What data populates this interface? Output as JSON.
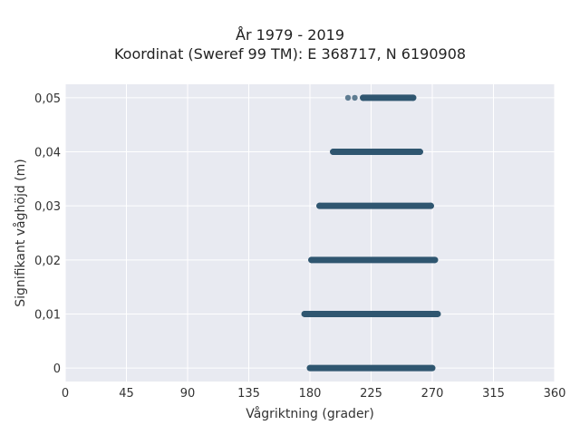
{
  "chart_data": {
    "type": "scatter",
    "title_line1": "År 1979 - 2019",
    "title_line2": "Koordinat (Sweref 99 TM): E 368717, N 6190908",
    "xlabel": "Vågriktning (grader)",
    "ylabel": "Signifikant våghöjd (m)",
    "xlim": [
      0,
      360
    ],
    "ylim": [
      -0.0025,
      0.0525
    ],
    "x_ticks": [
      0,
      45,
      90,
      135,
      180,
      225,
      270,
      315,
      360
    ],
    "y_ticks": [
      0,
      0.01,
      0.02,
      0.03,
      0.04,
      0.05
    ],
    "y_tick_labels": [
      "0",
      "0,01",
      "0,02",
      "0,03",
      "0,04",
      "0,05"
    ],
    "grid": true,
    "background": "#e8eaf1",
    "point_color": "#2f5670",
    "bands": [
      {
        "y": 0.0,
        "x_min": 180,
        "x_max": 270,
        "sparse_points": []
      },
      {
        "y": 0.01,
        "x_min": 176,
        "x_max": 274,
        "sparse_points": []
      },
      {
        "y": 0.02,
        "x_min": 181,
        "x_max": 272,
        "sparse_points": []
      },
      {
        "y": 0.03,
        "x_min": 187,
        "x_max": 269,
        "sparse_points": []
      },
      {
        "y": 0.04,
        "x_min": 197,
        "x_max": 261,
        "sparse_points": []
      },
      {
        "y": 0.05,
        "x_min": 219,
        "x_max": 256,
        "sparse_points": [
          208,
          213
        ]
      }
    ]
  }
}
